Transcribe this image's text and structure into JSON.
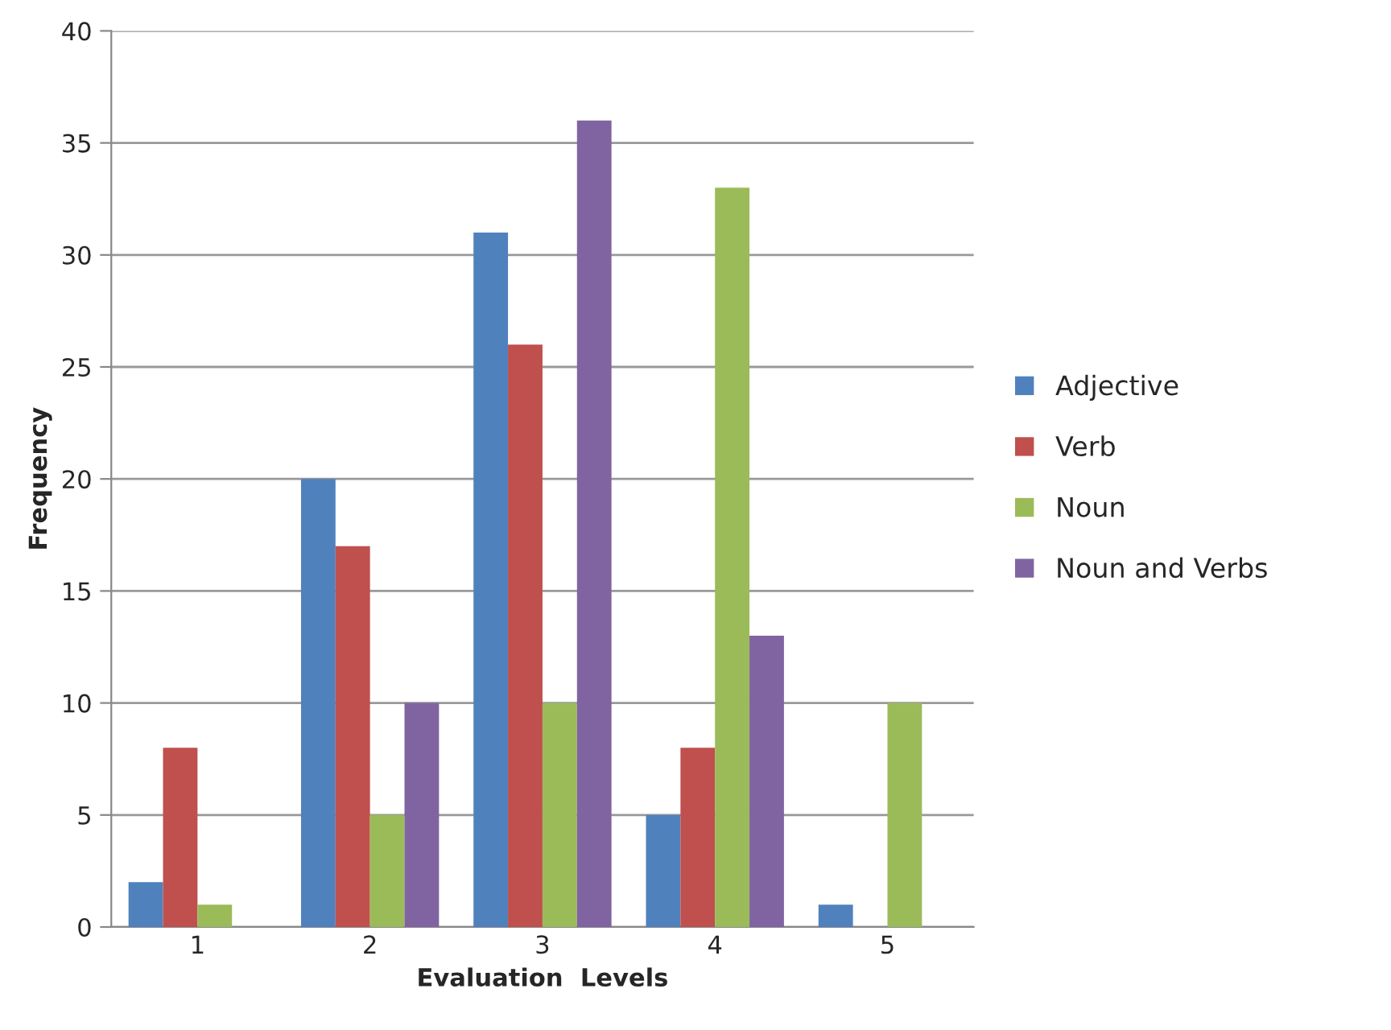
{
  "chart_data": {
    "type": "bar",
    "xlabel": "Evaluation  Levels",
    "ylabel": "Frequency",
    "categories": [
      "1",
      "2",
      "3",
      "4",
      "5"
    ],
    "series": [
      {
        "name": "Adjective",
        "color": "#4f81bd",
        "values": [
          2,
          20,
          31,
          5,
          1
        ]
      },
      {
        "name": "Verb",
        "color": "#c0504d",
        "values": [
          8,
          17,
          26,
          8,
          0
        ]
      },
      {
        "name": "Noun",
        "color": "#9bbb59",
        "values": [
          1,
          5,
          10,
          33,
          10
        ]
      },
      {
        "name": "Noun and Verbs",
        "color": "#8064a2",
        "values": [
          0,
          10,
          36,
          13,
          0
        ]
      }
    ],
    "ylim": [
      0,
      40
    ],
    "yticks": [
      0,
      5,
      10,
      15,
      20,
      25,
      30,
      35,
      40
    ],
    "grid": "y",
    "legend": "right"
  }
}
